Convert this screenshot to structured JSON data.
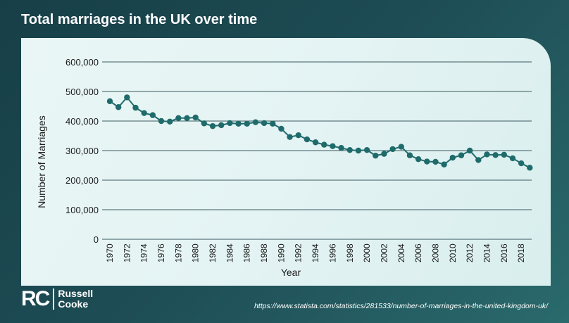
{
  "title": "Total marriages in the UK over time",
  "brand": {
    "mark": "RC",
    "name_line1": "Russell",
    "name_line2": "Cooke"
  },
  "source_url": "https://www.statista.com/statistics/281533/number-of-marriages-in-the-united-kingdom-uk/",
  "colors": {
    "series": "#1f6b6b",
    "grid": "#3c5a60",
    "background": "#1d4a52"
  },
  "chart_data": {
    "type": "line",
    "xlabel": "Year",
    "ylabel": "Number of Marriages",
    "ylim": [
      0,
      600000
    ],
    "yticks": [
      "0",
      "100,000",
      "200,000",
      "300,000",
      "400,000",
      "500,000",
      "600,000"
    ],
    "xticks": [
      "1970",
      "1972",
      "1974",
      "1976",
      "1978",
      "1980",
      "1982",
      "1984",
      "1986",
      "1988",
      "1990",
      "1992",
      "1994",
      "1996",
      "1998",
      "2000",
      "2002",
      "2004",
      "2006",
      "2008",
      "2010",
      "2012",
      "2014",
      "2016",
      "2018"
    ],
    "grid": true,
    "x": [
      1970,
      1971,
      1972,
      1973,
      1974,
      1975,
      1976,
      1977,
      1978,
      1979,
      1980,
      1981,
      1982,
      1983,
      1984,
      1985,
      1986,
      1987,
      1988,
      1989,
      1990,
      1991,
      1992,
      1993,
      1994,
      1995,
      1996,
      1997,
      1998,
      1999,
      2000,
      2001,
      2002,
      2003,
      2004,
      2005,
      2006,
      2007,
      2008,
      2009,
      2010,
      2011,
      2012,
      2013,
      2014,
      2015,
      2016,
      2017,
      2018,
      2019
    ],
    "values": [
      467000,
      447000,
      480000,
      445000,
      427000,
      420000,
      400000,
      398000,
      410000,
      410000,
      412000,
      392000,
      383000,
      386000,
      393000,
      391000,
      391000,
      396000,
      393000,
      391000,
      374000,
      346000,
      352000,
      338000,
      328000,
      320000,
      315000,
      309000,
      302000,
      300000,
      302000,
      283000,
      289000,
      305000,
      313000,
      284000,
      271000,
      263000,
      262000,
      253000,
      276000,
      284000,
      300000,
      268000,
      287000,
      285000,
      286000,
      274000,
      257000,
      242000
    ]
  }
}
